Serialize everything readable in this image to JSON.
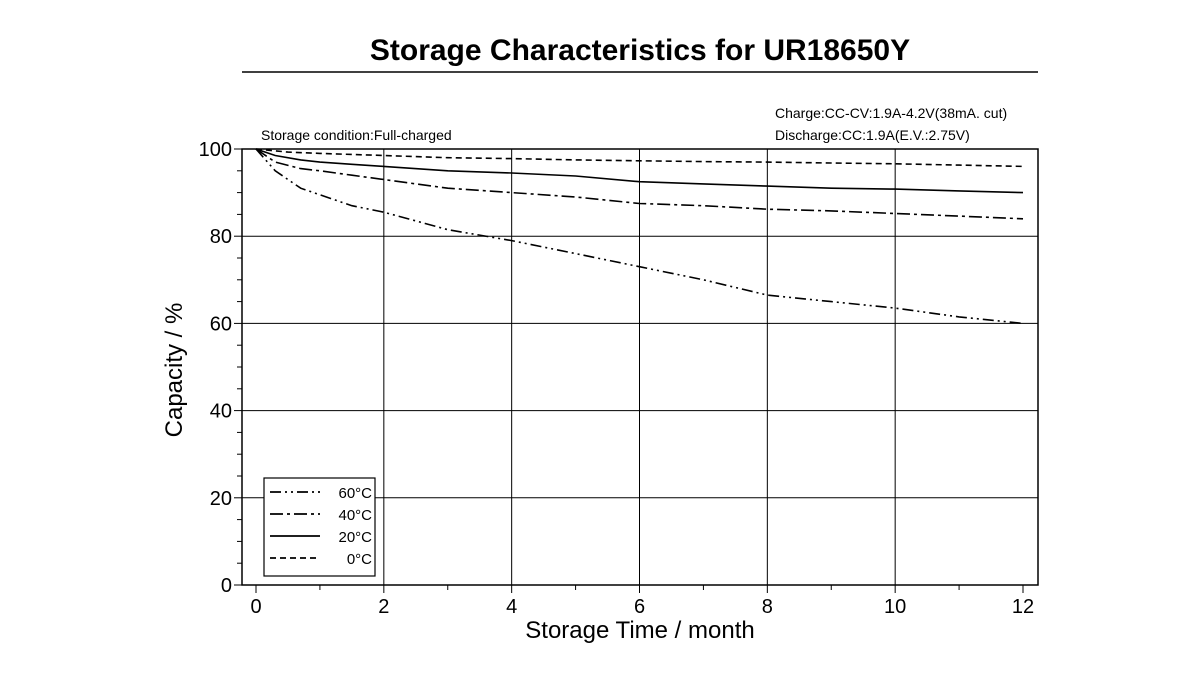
{
  "chart_data": {
    "type": "line",
    "title": "Storage Characteristics for UR18650Y",
    "xlabel": "Storage  Time  /  month",
    "ylabel": "Capacity  /  %",
    "xlim": [
      0,
      12
    ],
    "ylim": [
      0,
      100
    ],
    "xticks": [
      "0",
      "2",
      "4",
      "6",
      "8",
      "10",
      "12"
    ],
    "yticks": [
      "0",
      "20",
      "40",
      "60",
      "80",
      "100"
    ],
    "grid": true,
    "legend_position": "bottom-left",
    "annotations": {
      "storage_condition": "Storage condition:Full-charged",
      "charge": "Charge:CC-CV:1.9A-4.2V(38mA. cut)",
      "discharge": "Discharge:CC:1.9A(E.V.:2.75V)"
    },
    "series": [
      {
        "name": "60°C",
        "dash": "dash-dot-dot",
        "x": [
          0,
          0.3,
          0.7,
          1,
          1.5,
          2,
          2.5,
          3,
          4,
          5,
          6,
          7,
          8,
          9,
          10,
          11,
          12
        ],
        "y": [
          100,
          95,
          91,
          89.5,
          87,
          85.5,
          83.5,
          81.5,
          79,
          76,
          73,
          70,
          66.5,
          65,
          63.5,
          61.5,
          60
        ]
      },
      {
        "name": "40°C",
        "dash": "dash-dot",
        "x": [
          0,
          0.3,
          0.7,
          1,
          1.5,
          2,
          2.5,
          3,
          4,
          5,
          6,
          7,
          8,
          9,
          10,
          11,
          12
        ],
        "y": [
          100,
          97,
          95.5,
          95,
          94,
          93,
          92,
          91,
          90,
          89,
          87.5,
          87,
          86.2,
          85.8,
          85.2,
          84.6,
          84
        ]
      },
      {
        "name": "20°C",
        "dash": "solid",
        "x": [
          0,
          0.3,
          0.7,
          1,
          1.5,
          2,
          3,
          4,
          5,
          6,
          7,
          8,
          9,
          10,
          11,
          12
        ],
        "y": [
          100,
          98.5,
          97.5,
          97,
          96.5,
          96,
          95,
          94.5,
          93.8,
          92.5,
          92,
          91.5,
          91,
          90.8,
          90.4,
          90
        ]
      },
      {
        "name": "0°C",
        "dash": "dashed",
        "x": [
          0,
          0.5,
          1,
          2,
          3,
          4,
          5,
          6,
          7,
          8,
          9,
          10,
          11,
          12
        ],
        "y": [
          100,
          99.3,
          99,
          98.5,
          98,
          97.8,
          97.5,
          97.3,
          97.1,
          97,
          96.8,
          96.6,
          96.3,
          96
        ]
      }
    ]
  }
}
